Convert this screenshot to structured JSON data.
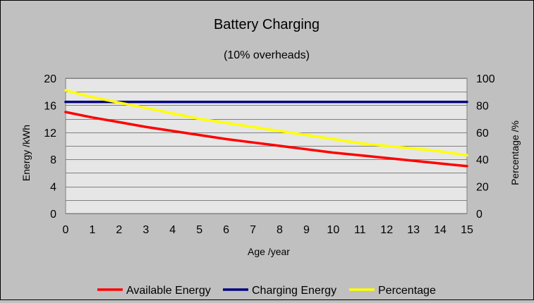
{
  "chart_data": {
    "type": "line",
    "title": "Battery Charging",
    "subtitle": "(10% overheads)",
    "xlabel": "Age /year",
    "ylabel_left": "Energy /kWh",
    "ylabel_right": "Percentage /%",
    "xlim": [
      0,
      15
    ],
    "ylim_left": [
      0,
      20
    ],
    "ylim_right": [
      0,
      100
    ],
    "x_ticks": [
      0,
      1,
      2,
      3,
      4,
      5,
      6,
      7,
      8,
      9,
      10,
      11,
      12,
      13,
      14,
      15
    ],
    "y_ticks_left": [
      0,
      4,
      8,
      12,
      16,
      20
    ],
    "y_ticks_right": [
      0,
      20,
      40,
      60,
      80,
      100
    ],
    "grid": true,
    "plot_background": "#e6e6e6",
    "chart_background": "#c0c0c0",
    "legend_position": "bottom",
    "x": [
      0,
      1,
      2,
      3,
      4,
      5,
      6,
      7,
      8,
      9,
      10,
      11,
      12,
      13,
      14,
      15
    ],
    "series": [
      {
        "name": "Available Energy",
        "axis": "left",
        "color": "#ff0000",
        "values": [
          15.0,
          14.2,
          13.5,
          12.8,
          12.2,
          11.6,
          11.0,
          10.5,
          10.0,
          9.5,
          9.0,
          8.6,
          8.2,
          7.8,
          7.4,
          7.0
        ]
      },
      {
        "name": "Charging Energy",
        "axis": "left",
        "color": "#000080",
        "values": [
          16.5,
          16.5,
          16.5,
          16.5,
          16.5,
          16.5,
          16.5,
          16.5,
          16.5,
          16.5,
          16.5,
          16.5,
          16.5,
          16.5,
          16.5,
          16.5
        ]
      },
      {
        "name": "Percentage",
        "axis": "right",
        "color": "#ffff00",
        "values": [
          91,
          86,
          82,
          78,
          74,
          70,
          67,
          64,
          61,
          58,
          55,
          52,
          50,
          48,
          46,
          43
        ]
      }
    ]
  }
}
